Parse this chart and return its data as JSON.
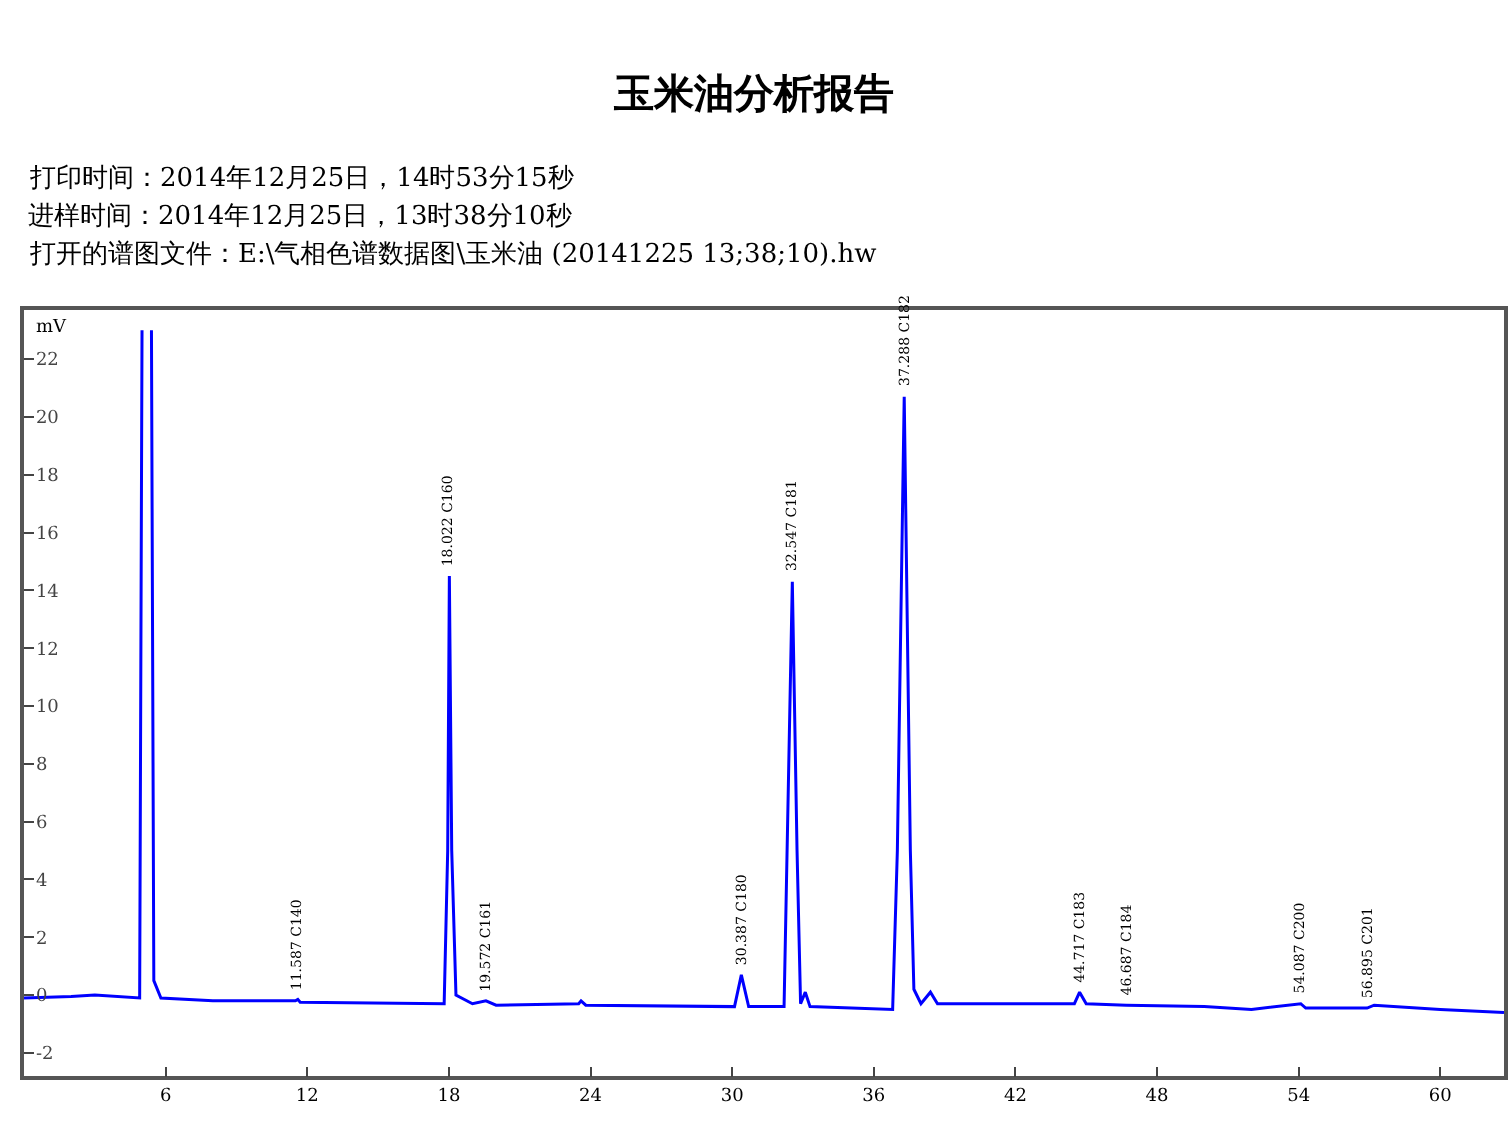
{
  "chart_data": {
    "type": "line",
    "title": "玉米油分析报告",
    "ylabel": "mV",
    "color": "#0000ff",
    "x": [
      0,
      2,
      3,
      4.9,
      5.0,
      5.2,
      5.4,
      5.5,
      5.8,
      8,
      11.5,
      11.6,
      11.7,
      17.8,
      17.95,
      18.02,
      18.12,
      18.3,
      19,
      19.57,
      20,
      23.5,
      23.6,
      23.8,
      30.1,
      30.39,
      30.7,
      32.2,
      32.4,
      32.55,
      32.75,
      32.9,
      33.1,
      33.3,
      36.8,
      37.0,
      37.29,
      37.55,
      37.7,
      38.0,
      38.4,
      38.7,
      44.5,
      44.72,
      45.0,
      46.7,
      50,
      52,
      54.09,
      54.3,
      56.9,
      57.2,
      60,
      62.7
    ],
    "values": [
      -0.1,
      -0.05,
      0,
      -0.1,
      23,
      null,
      23,
      0.5,
      -0.1,
      -0.2,
      -0.2,
      -0.15,
      -0.25,
      -0.3,
      5,
      14.5,
      5,
      0,
      -0.3,
      -0.2,
      -0.35,
      -0.3,
      -0.2,
      -0.35,
      -0.4,
      0.7,
      -0.4,
      -0.4,
      8,
      14.3,
      5,
      -0.3,
      0.1,
      -0.4,
      -0.5,
      5,
      20.7,
      5,
      0.2,
      -0.3,
      0.1,
      -0.3,
      -0.3,
      0.1,
      -0.3,
      -0.35,
      -0.4,
      -0.5,
      -0.3,
      -0.45,
      -0.45,
      -0.35,
      -0.5,
      -0.6
    ],
    "xlim": [
      0,
      62.7
    ],
    "ylim": [
      -2.8,
      23.7
    ],
    "xticks": [
      6,
      12,
      18,
      24,
      30,
      36,
      42,
      48,
      54,
      60
    ],
    "yticks": [
      -2,
      0,
      2,
      4,
      6,
      8,
      10,
      12,
      14,
      16,
      18,
      20,
      22
    ],
    "legend": false,
    "annotations": [
      "打印时间：2014年12月25日，14时53分15秒",
      "进样时间：2014年12月25日，13时38分10秒",
      "打开的谱图文件：E:\\气相色谱数据图\\玉米油 (20141225 13;38;10).hw",
      {
        "text": "11.587 C140",
        "x": 11.6,
        "y": -0.15
      },
      {
        "text": "18.022 C160",
        "x": 18.02,
        "y": 14.5
      },
      {
        "text": "19.572 C161",
        "x": 19.57,
        "y": -0.2
      },
      {
        "text": "30.387 C180",
        "x": 30.39,
        "y": 0.7
      },
      {
        "text": "32.547 C181",
        "x": 32.55,
        "y": 14.3
      },
      {
        "text": "37.288 C182",
        "x": 37.29,
        "y": 20.7
      },
      {
        "text": "44.717 C183",
        "x": 44.72,
        "y": 0.1
      },
      {
        "text": "46.687 C184",
        "x": 46.7,
        "y": -0.35
      },
      {
        "text": "54.087 C200",
        "x": 54.09,
        "y": -0.3
      },
      {
        "text": "56.895 C201",
        "x": 56.9,
        "y": -0.45
      }
    ]
  }
}
